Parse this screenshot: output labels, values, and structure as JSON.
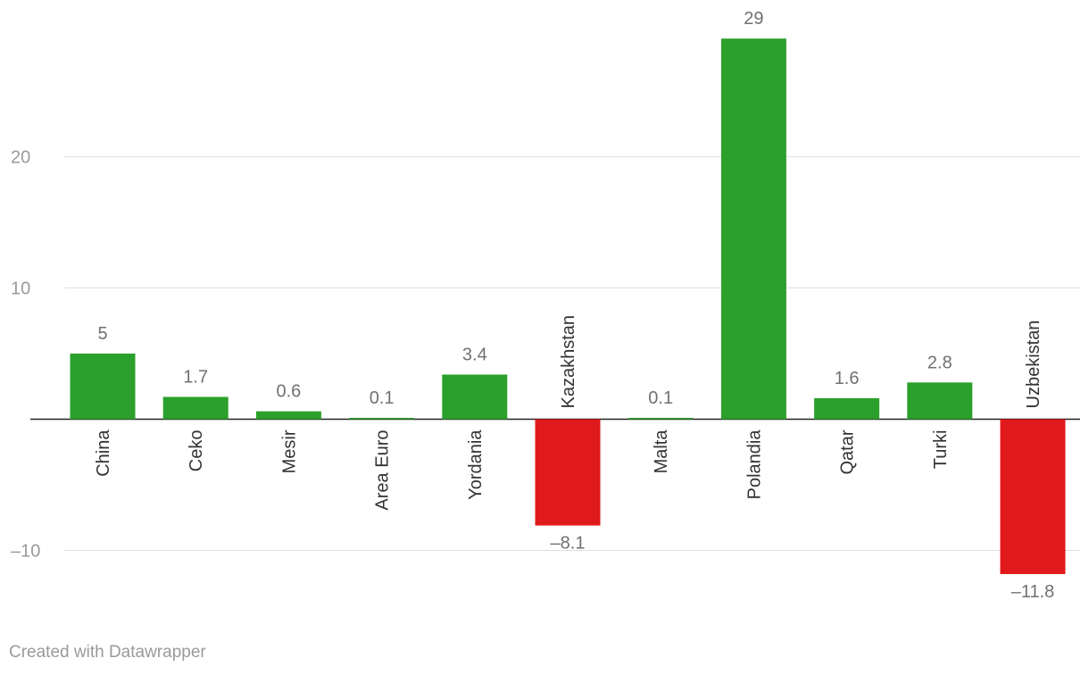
{
  "chart_data": {
    "type": "bar",
    "categories": [
      "China",
      "Ceko",
      "Mesir",
      "Area Euro",
      "Yordania",
      "Kazakhstan",
      "Malta",
      "Polandia",
      "Qatar",
      "Turki",
      "Uzbekistan"
    ],
    "values": [
      5,
      1.7,
      0.6,
      0.1,
      3.4,
      -8.1,
      0.1,
      29,
      1.6,
      2.8,
      -11.8
    ],
    "value_labels": [
      "5",
      "1.7",
      "0.6",
      "0.1",
      "3.4",
      "–8.1",
      "0.1",
      "29",
      "1.6",
      "2.8",
      "–11.8"
    ],
    "title": "",
    "xlabel": "",
    "ylabel": "",
    "ylim": [
      -11.8,
      29
    ],
    "yticks": [
      -10,
      10,
      20
    ],
    "ytick_labels": [
      "–10",
      "10",
      "20"
    ],
    "grid": true,
    "colors": {
      "positive": "#2ca02c",
      "negative": "#e01a1a"
    }
  },
  "footer": {
    "credit": "Created with Datawrapper"
  }
}
